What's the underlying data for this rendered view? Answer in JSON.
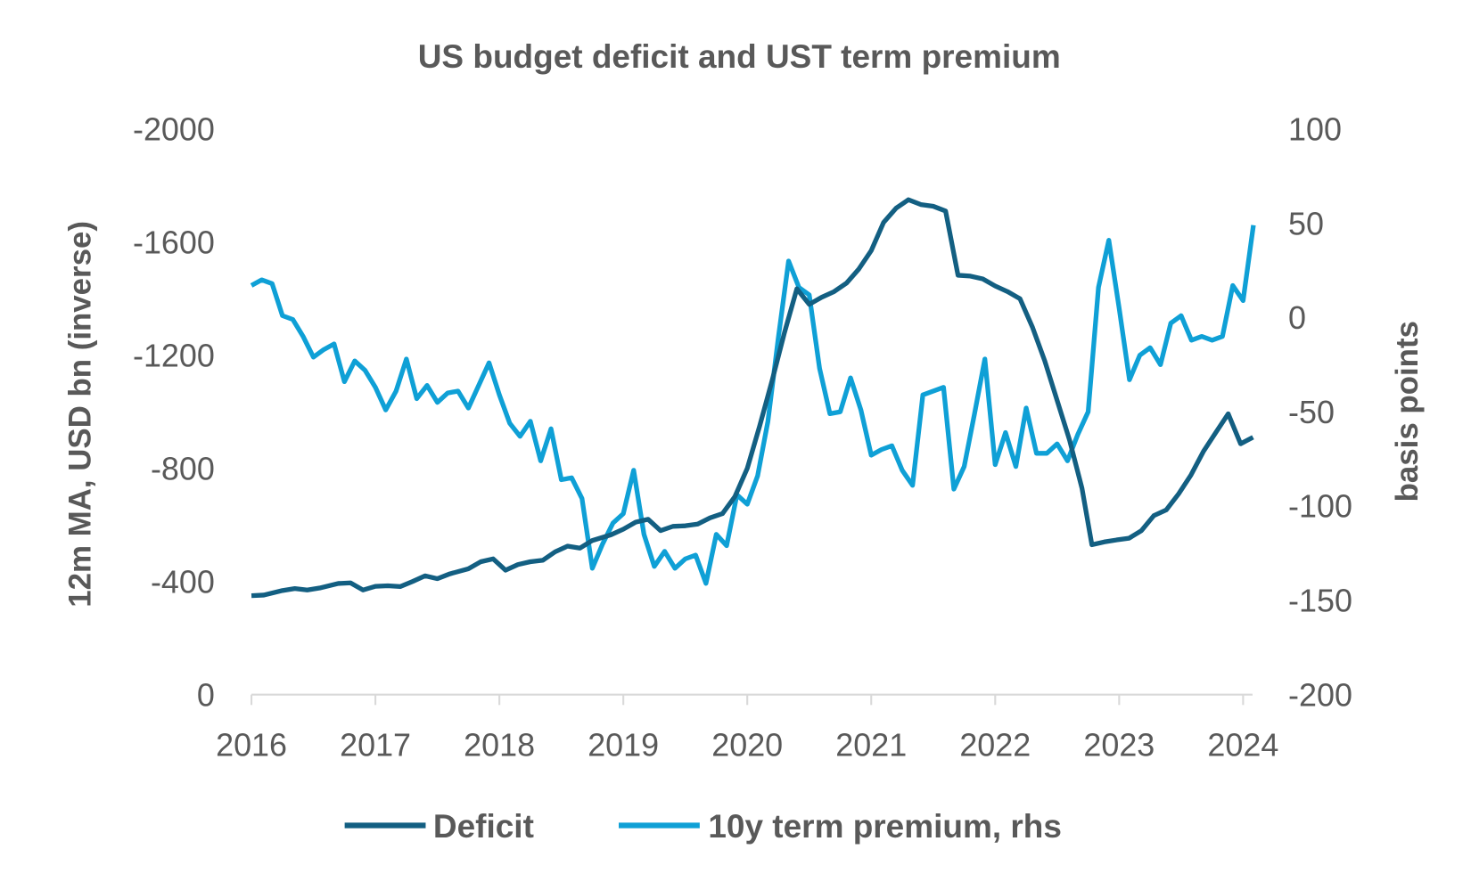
{
  "chart_data": {
    "type": "line",
    "title": "US budget deficit and UST term premium",
    "ylabel_left": "12m MA, USD bn (inverse)",
    "ylabel_right": "basis points",
    "x_ticks": [
      "2016",
      "2017",
      "2018",
      "2019",
      "2020",
      "2021",
      "2022",
      "2023",
      "2024"
    ],
    "xlim": [
      2016,
      2024
    ],
    "y_left": {
      "lim": [
        0,
        -2000
      ],
      "inverted": true,
      "ticks": [
        "-2000",
        "-1600",
        "-1200",
        "-800",
        "-400",
        "0"
      ]
    },
    "y_right": {
      "lim": [
        -200,
        100
      ],
      "ticks": [
        "100",
        "50",
        "0",
        "-50",
        "-100",
        "-150",
        "-200"
      ]
    },
    "grid": false,
    "legend_position": "bottom",
    "series": [
      {
        "name": "Deficit",
        "axis": "left",
        "color": "#135f82",
        "points": [
          [
            2016.0,
            -350
          ],
          [
            2016.1,
            -352
          ],
          [
            2016.25,
            -368
          ],
          [
            2016.35,
            -375
          ],
          [
            2016.45,
            -370
          ],
          [
            2016.55,
            -377
          ],
          [
            2016.7,
            -393
          ],
          [
            2016.8,
            -395
          ],
          [
            2016.9,
            -370
          ],
          [
            2017.0,
            -383
          ],
          [
            2017.1,
            -385
          ],
          [
            2017.2,
            -382
          ],
          [
            2017.3,
            -400
          ],
          [
            2017.4,
            -420
          ],
          [
            2017.5,
            -410
          ],
          [
            2017.6,
            -427
          ],
          [
            2017.75,
            -445
          ],
          [
            2017.85,
            -470
          ],
          [
            2017.95,
            -480
          ],
          [
            2018.05,
            -440
          ],
          [
            2018.15,
            -460
          ],
          [
            2018.25,
            -470
          ],
          [
            2018.35,
            -475
          ],
          [
            2018.45,
            -505
          ],
          [
            2018.55,
            -525
          ],
          [
            2018.65,
            -518
          ],
          [
            2018.75,
            -545
          ],
          [
            2018.9,
            -565
          ],
          [
            2019.0,
            -585
          ],
          [
            2019.1,
            -610
          ],
          [
            2019.2,
            -620
          ],
          [
            2019.3,
            -580
          ],
          [
            2019.4,
            -595
          ],
          [
            2019.5,
            -597
          ],
          [
            2019.6,
            -603
          ],
          [
            2019.7,
            -625
          ],
          [
            2019.8,
            -640
          ],
          [
            2019.9,
            -700
          ],
          [
            2020.0,
            -800
          ],
          [
            2020.1,
            -950
          ],
          [
            2020.2,
            -1110
          ],
          [
            2020.3,
            -1280
          ],
          [
            2020.4,
            -1435
          ],
          [
            2020.5,
            -1380
          ],
          [
            2020.6,
            -1405
          ],
          [
            2020.7,
            -1425
          ],
          [
            2020.8,
            -1455
          ],
          [
            2020.9,
            -1505
          ],
          [
            2021.0,
            -1570
          ],
          [
            2021.1,
            -1670
          ],
          [
            2021.2,
            -1720
          ],
          [
            2021.3,
            -1750
          ],
          [
            2021.4,
            -1733
          ],
          [
            2021.5,
            -1727
          ],
          [
            2021.6,
            -1710
          ],
          [
            2021.7,
            -1483
          ],
          [
            2021.8,
            -1480
          ],
          [
            2021.9,
            -1470
          ],
          [
            2022.0,
            -1445
          ],
          [
            2022.1,
            -1425
          ],
          [
            2022.2,
            -1400
          ],
          [
            2022.3,
            -1300
          ],
          [
            2022.4,
            -1180
          ],
          [
            2022.5,
            -1040
          ],
          [
            2022.6,
            -900
          ],
          [
            2022.7,
            -730
          ],
          [
            2022.78,
            -530
          ],
          [
            2022.88,
            -540
          ],
          [
            2022.98,
            -547
          ],
          [
            2023.08,
            -553
          ],
          [
            2023.18,
            -580
          ],
          [
            2023.28,
            -633
          ],
          [
            2023.38,
            -653
          ],
          [
            2023.48,
            -710
          ],
          [
            2023.58,
            -777
          ],
          [
            2023.68,
            -860
          ],
          [
            2023.78,
            -927
          ],
          [
            2023.88,
            -993
          ],
          [
            2023.98,
            -887
          ],
          [
            2024.08,
            -910
          ]
        ]
      },
      {
        "name": "10y term premium, rhs",
        "axis": "right",
        "color": "#0fa0d6",
        "start": "2016-01",
        "frequency": "monthly",
        "values": [
          17,
          20,
          18,
          1,
          -1,
          -10,
          -21,
          -17,
          -14,
          -34,
          -23,
          -28,
          -37,
          -49,
          -39,
          -22,
          -43,
          -36,
          -45,
          -40,
          -39,
          -48,
          -36,
          -24,
          -41,
          -56,
          -63,
          -55,
          -76,
          -59,
          -86,
          -85,
          -96,
          -133,
          -120,
          -109,
          -104,
          -81,
          -115,
          -132,
          -124,
          -133,
          -128,
          -126,
          -141,
          -115,
          -121,
          -94,
          -99,
          -84,
          -55,
          -11,
          30,
          16,
          12,
          -27,
          -51,
          -50,
          -32,
          -49,
          -73,
          -70,
          -68,
          -81,
          -89,
          -41,
          -39,
          -37,
          -91,
          -79,
          -51,
          -22,
          -78,
          -61,
          -79,
          -48,
          -72,
          -72,
          -67,
          -76,
          -62,
          -50,
          16,
          41,
          5,
          -33,
          -20,
          -16,
          -25,
          -3,
          1,
          -12,
          -10,
          -12,
          -10,
          17,
          9,
          49
        ]
      }
    ]
  }
}
